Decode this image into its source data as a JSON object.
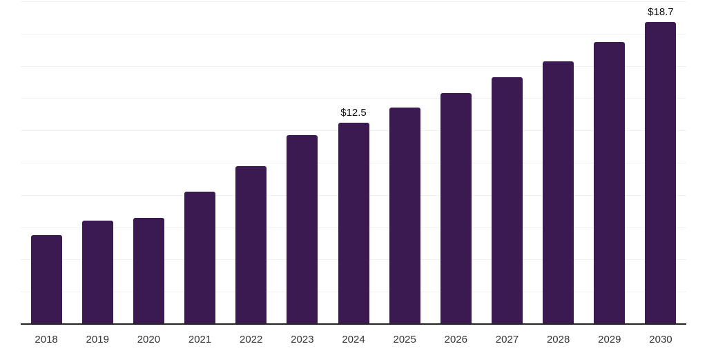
{
  "chart_data": {
    "type": "bar",
    "title": "",
    "xlabel": "",
    "ylabel": "",
    "categories": [
      "2018",
      "2019",
      "2020",
      "2021",
      "2022",
      "2023",
      "2024",
      "2025",
      "2026",
      "2027",
      "2028",
      "2029",
      "2030"
    ],
    "values": [
      5.5,
      6.4,
      6.6,
      8.2,
      9.8,
      11.7,
      12.5,
      13.4,
      14.3,
      15.3,
      16.3,
      17.5,
      18.7
    ],
    "data_labels": {
      "2024": "$12.5",
      "2030": "$18.7"
    },
    "ylim": [
      0,
      20
    ],
    "gridline_step": 2,
    "grid": true,
    "legend": "none",
    "colors": {
      "bar": "#3a1a50",
      "gridline": "#f1f1f1",
      "axis_line": "#222222",
      "tick_label": "#333333",
      "data_label": "#111111",
      "background": "#ffffff"
    }
  }
}
